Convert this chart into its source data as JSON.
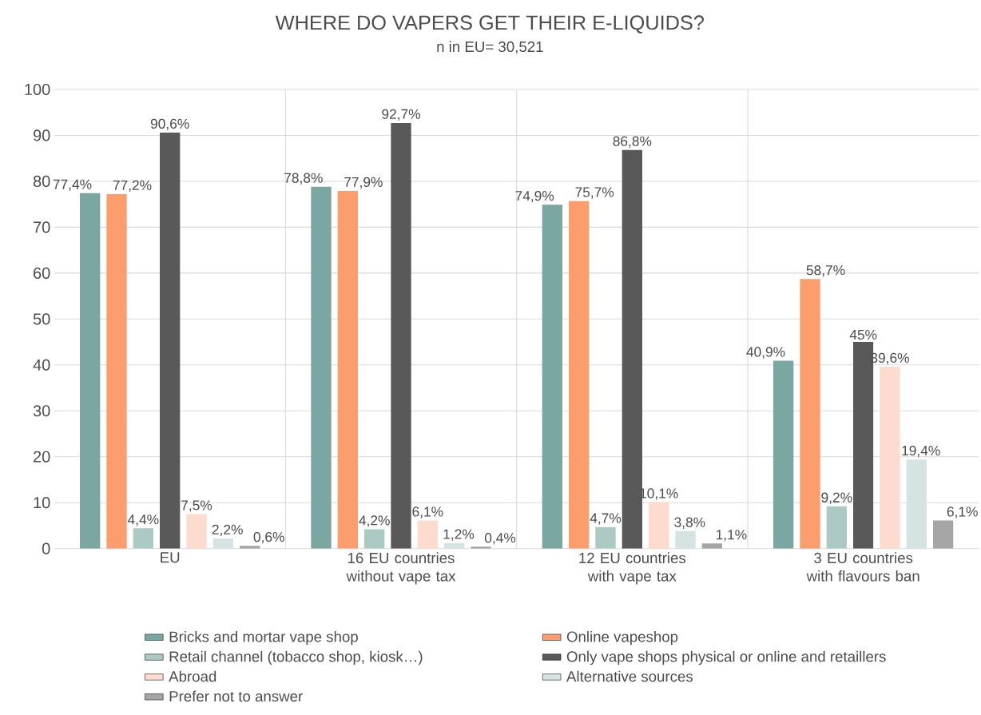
{
  "chart_data": {
    "type": "bar",
    "title": "WHERE DO VAPERS GET THEIR E-LIQUIDS?",
    "subtitle": "n in EU= 30,521",
    "categories": [
      "EU",
      "16 EU countries without vape tax",
      "12 EU countries with vape tax",
      "3 EU countries with flavours ban"
    ],
    "series": [
      {
        "name": "Bricks and mortar vape shop",
        "color": "#7ba7a2",
        "values": [
          77.4,
          78.8,
          74.9,
          40.9
        ],
        "value_labels": [
          "77,4%",
          "78,8%",
          "74,9%",
          "40,9%"
        ]
      },
      {
        "name": "Online vapeshop",
        "color": "#fc9d6d",
        "values": [
          77.2,
          77.9,
          75.7,
          58.7
        ],
        "value_labels": [
          "77,2%",
          "77,9%",
          "75,7%",
          "58,7%"
        ]
      },
      {
        "name": "Retail channel (tobacco shop, kiosk…)",
        "color": "#adc9c4",
        "values": [
          4.4,
          4.2,
          4.7,
          9.2
        ],
        "value_labels": [
          "4,4%",
          "4,2%",
          "4,7%",
          "9,2%"
        ]
      },
      {
        "name": "Only vape shops physical or online and retaillers",
        "color": "#595959",
        "values": [
          90.6,
          92.7,
          86.8,
          45
        ],
        "value_labels": [
          "90,6%",
          "92,7%",
          "86,8%",
          "45%"
        ]
      },
      {
        "name": "Abroad",
        "color": "#fddccf",
        "values": [
          7.5,
          6.1,
          10.1,
          39.6
        ],
        "value_labels": [
          "7,5%",
          "6,1%",
          "10,1%",
          "39,6%"
        ]
      },
      {
        "name": "Alternative sources",
        "color": "#d5e3e3",
        "values": [
          2.2,
          1.2,
          3.8,
          19.4
        ],
        "value_labels": [
          "2,2%",
          "1,2%",
          "3,8%",
          "19,4%"
        ]
      },
      {
        "name": "Prefer not to answer",
        "color": "#a5a5a5",
        "values": [
          0.6,
          0.4,
          1.1,
          6.1
        ],
        "value_labels": [
          "0,6%",
          "0,4%",
          "1,1%",
          "6,1%"
        ]
      }
    ],
    "ylim": [
      0,
      100
    ],
    "yticks": [
      0,
      10,
      20,
      30,
      40,
      50,
      60,
      70,
      80,
      90,
      100
    ],
    "grid": true,
    "legend": "bottom"
  }
}
